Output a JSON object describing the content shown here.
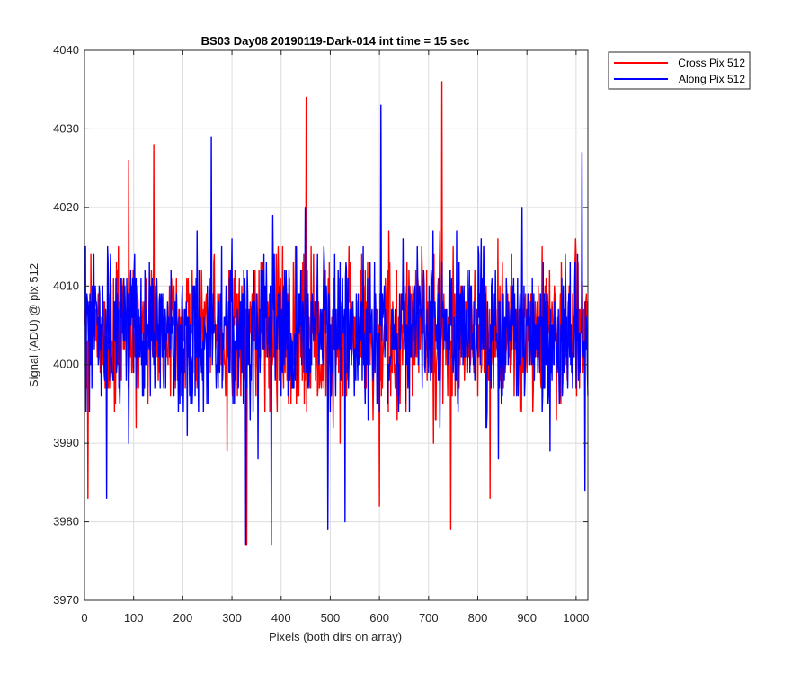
{
  "chart_data": {
    "type": "line",
    "title": "BS03 Day08 20190119-Dark-014 int time = 15 sec",
    "xlabel": "Pixels (both dirs on array)",
    "ylabel": "Signal (ADU) @ pix 512",
    "xlim": [
      0,
      1024
    ],
    "ylim": [
      3970,
      4040
    ],
    "xticks": [
      0,
      100,
      200,
      300,
      400,
      500,
      600,
      700,
      800,
      900,
      1000
    ],
    "yticks": [
      3970,
      3980,
      3990,
      4000,
      4010,
      4020,
      4030,
      4040
    ],
    "grid": true,
    "legend_position": "outside-top-right",
    "series_model": {
      "points": 1024,
      "x_start": 1,
      "x_step": 1,
      "mean": 4004,
      "spread": 4.8,
      "min": 3977,
      "max": 4036
    },
    "series": [
      {
        "name": "Cross Pix 512",
        "color": "#ff0000",
        "seed": 17,
        "features": [
          [
            7,
            3983
          ],
          [
            90,
            4026
          ],
          [
            141,
            4028
          ],
          [
            330,
            3977
          ],
          [
            451,
            4034
          ],
          [
            600,
            3982
          ],
          [
            727,
            4036
          ],
          [
            745,
            3979
          ],
          [
            825,
            3983
          ]
        ]
      },
      {
        "name": "Along Pix 512",
        "color": "#0000ff",
        "seed": 53,
        "features": [
          [
            45,
            3983
          ],
          [
            258,
            4029
          ],
          [
            328,
            3977
          ],
          [
            380,
            3977
          ],
          [
            495,
            3979
          ],
          [
            530,
            3980
          ],
          [
            603,
            4033
          ],
          [
            1012,
            4027
          ],
          [
            1018,
            3984
          ]
        ]
      }
    ]
  }
}
